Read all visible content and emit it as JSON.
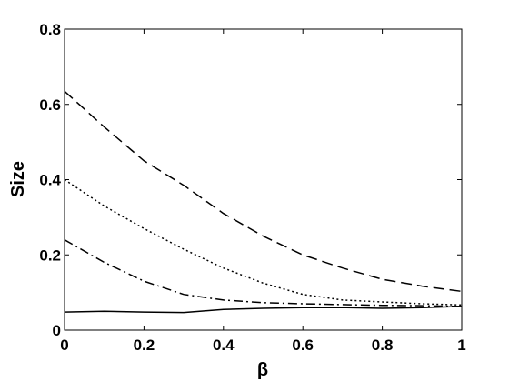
{
  "chart_data": {
    "type": "line",
    "title": "",
    "xlabel": "β",
    "ylabel": "Size",
    "xlim": [
      0,
      1
    ],
    "ylim": [
      0,
      0.8
    ],
    "xticks": [
      "0",
      "0.2",
      "0.4",
      "0.6",
      "0.8",
      "1"
    ],
    "yticks": [
      "0",
      "0.2",
      "0.4",
      "0.6",
      "0.8"
    ],
    "grid": false,
    "x": [
      0,
      0.1,
      0.2,
      0.3,
      0.4,
      0.5,
      0.6,
      0.7,
      0.8,
      0.9,
      1.0
    ],
    "series": [
      {
        "style": "dashed",
        "color": "#000000",
        "values": [
          0.635,
          0.54,
          0.45,
          0.385,
          0.31,
          0.25,
          0.2,
          0.165,
          0.135,
          0.117,
          0.103
        ]
      },
      {
        "style": "dotted",
        "color": "#000000",
        "values": [
          0.4,
          0.33,
          0.27,
          0.215,
          0.165,
          0.125,
          0.095,
          0.08,
          0.075,
          0.07,
          0.067
        ]
      },
      {
        "style": "dash-dot",
        "color": "#000000",
        "values": [
          0.24,
          0.18,
          0.13,
          0.095,
          0.08,
          0.073,
          0.07,
          0.068,
          0.066,
          0.065,
          0.063
        ]
      },
      {
        "style": "solid",
        "color": "#000000",
        "values": [
          0.048,
          0.05,
          0.048,
          0.047,
          0.055,
          0.058,
          0.06,
          0.06,
          0.058,
          0.06,
          0.063
        ]
      }
    ]
  }
}
